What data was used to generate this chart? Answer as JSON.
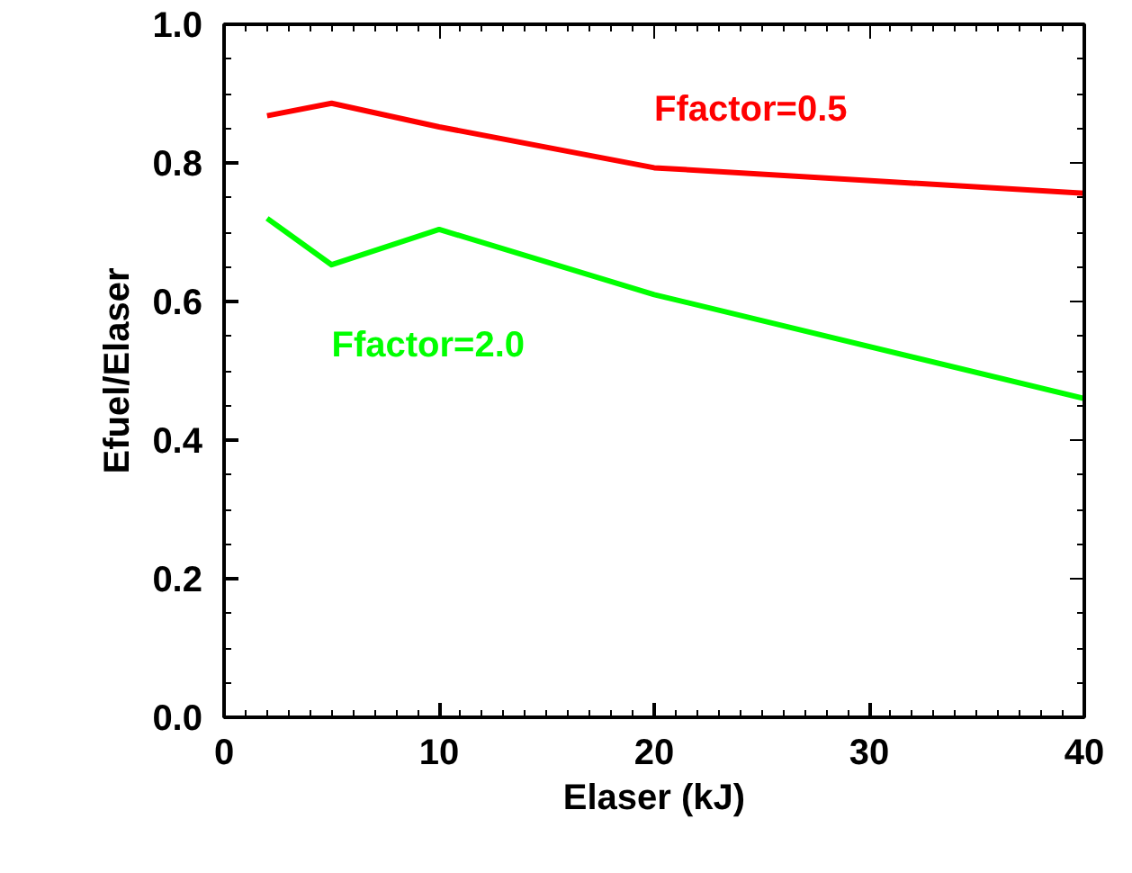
{
  "chart_data": {
    "type": "line",
    "xlabel": "Elaser (kJ)",
    "ylabel": "Efuel/Elaser",
    "x": [
      2,
      5,
      10,
      20,
      40
    ],
    "series": [
      {
        "name": "Ffactor=0.5",
        "color": "#ff0000",
        "values": [
          0.868,
          0.886,
          0.852,
          0.793,
          0.756
        ]
      },
      {
        "name": "Ffactor=2.0",
        "color": "#00ff00",
        "values": [
          0.72,
          0.653,
          0.704,
          0.61,
          0.46
        ]
      }
    ],
    "xlim": [
      0,
      40
    ],
    "xticks": [
      0,
      10,
      20,
      30,
      40
    ],
    "ylim": [
      0,
      1.0
    ],
    "yticks": [
      {
        "value": 0,
        "label": "0.0"
      },
      0.2,
      0.4,
      0.6,
      0.8,
      {
        "value": 1.0,
        "label": "1.0"
      }
    ],
    "grid": false,
    "marker": "none",
    "line_style": "solid"
  }
}
